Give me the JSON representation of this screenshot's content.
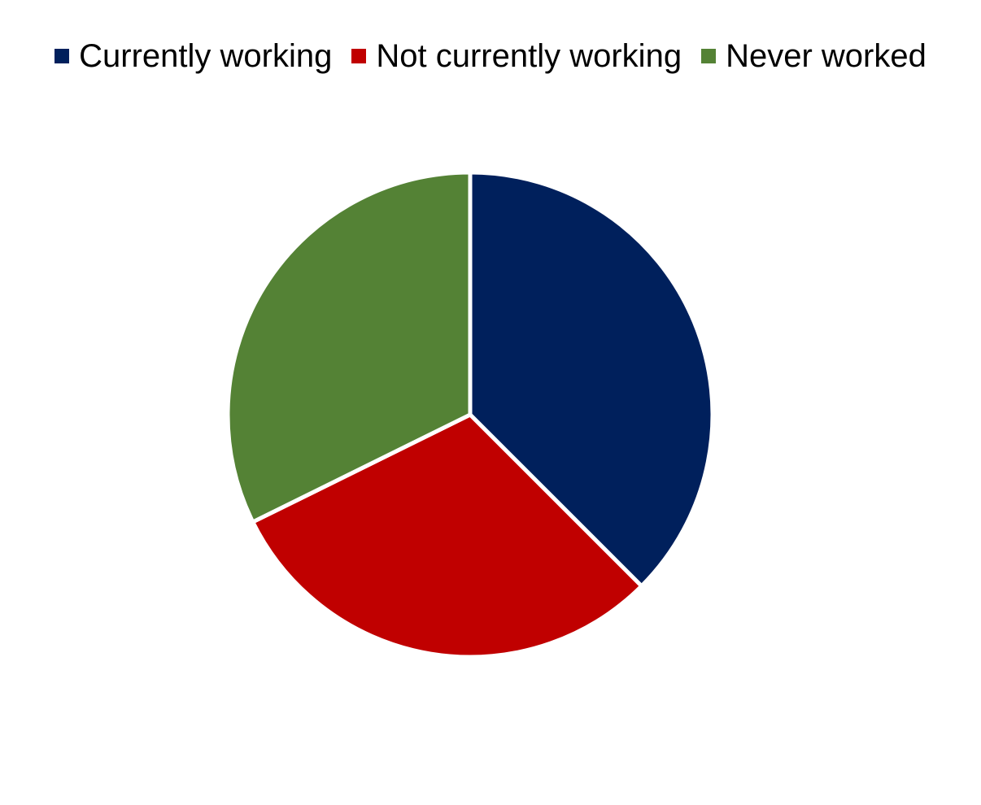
{
  "chart_data": {
    "type": "pie",
    "title": "",
    "categories": [
      "Currently working",
      "Not currently working",
      "Never worked"
    ],
    "values": [
      37.5,
      30.2,
      32.3
    ],
    "unit": "%",
    "colors": [
      "#00205C",
      "#C00000",
      "#548235"
    ],
    "start_angle_deg": 0,
    "direction": "clockwise",
    "legend_position": "top",
    "data_labels": false
  }
}
